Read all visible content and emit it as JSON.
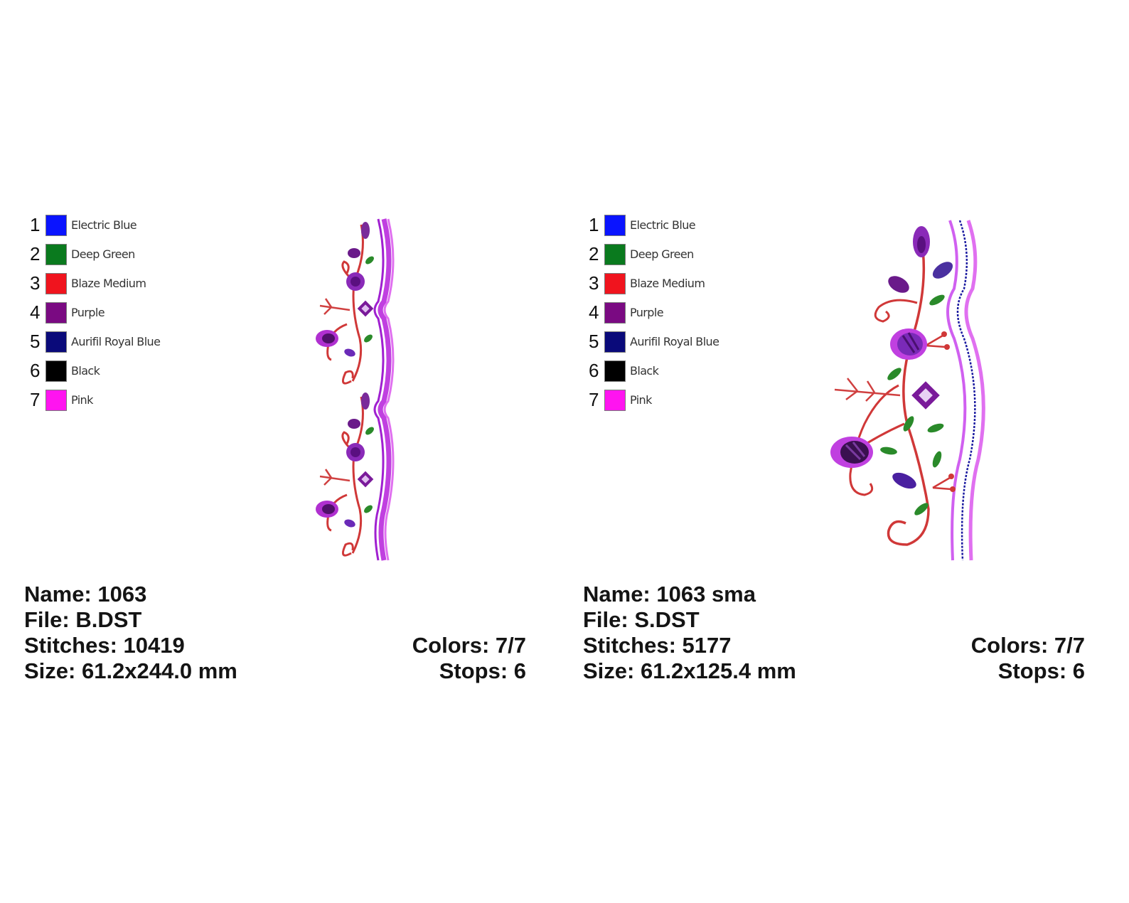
{
  "designs": [
    {
      "colors": [
        {
          "num": "1",
          "name": "Electric Blue",
          "hex": "#0a14ff"
        },
        {
          "num": "2",
          "name": "Deep Green",
          "hex": "#0a7a1e"
        },
        {
          "num": "3",
          "name": "Blaze Medium",
          "hex": "#f0141e"
        },
        {
          "num": "4",
          "name": "Purple",
          "hex": "#7a0a82"
        },
        {
          "num": "5",
          "name": "Aurifil Royal Blue",
          "hex": "#0a0a7a"
        },
        {
          "num": "6",
          "name": "Black",
          "hex": "#000000"
        },
        {
          "num": "7",
          "name": "Pink",
          "hex": "#ff14f0"
        }
      ],
      "name": "Name: 1063",
      "file": "File: B.DST",
      "stitches": "Stitches: 10419",
      "size": "Size: 61.2x244.0 mm",
      "colors_count": "Colors: 7/7",
      "stops": "Stops: 6"
    },
    {
      "colors": [
        {
          "num": "1",
          "name": "Electric Blue",
          "hex": "#0a14ff"
        },
        {
          "num": "2",
          "name": "Deep Green",
          "hex": "#0a7a1e"
        },
        {
          "num": "3",
          "name": "Blaze Medium",
          "hex": "#f0141e"
        },
        {
          "num": "4",
          "name": "Purple",
          "hex": "#7a0a82"
        },
        {
          "num": "5",
          "name": "Aurifil Royal Blue",
          "hex": "#0a0a7a"
        },
        {
          "num": "6",
          "name": "Black",
          "hex": "#000000"
        },
        {
          "num": "7",
          "name": "Pink",
          "hex": "#ff14f0"
        }
      ],
      "name": "Name: 1063 sma",
      "file": "File: S.DST",
      "stitches": "Stitches: 5177",
      "size": "Size: 61.2x125.4 mm",
      "colors_count": "Colors: 7/7",
      "stops": "Stops: 6"
    }
  ]
}
